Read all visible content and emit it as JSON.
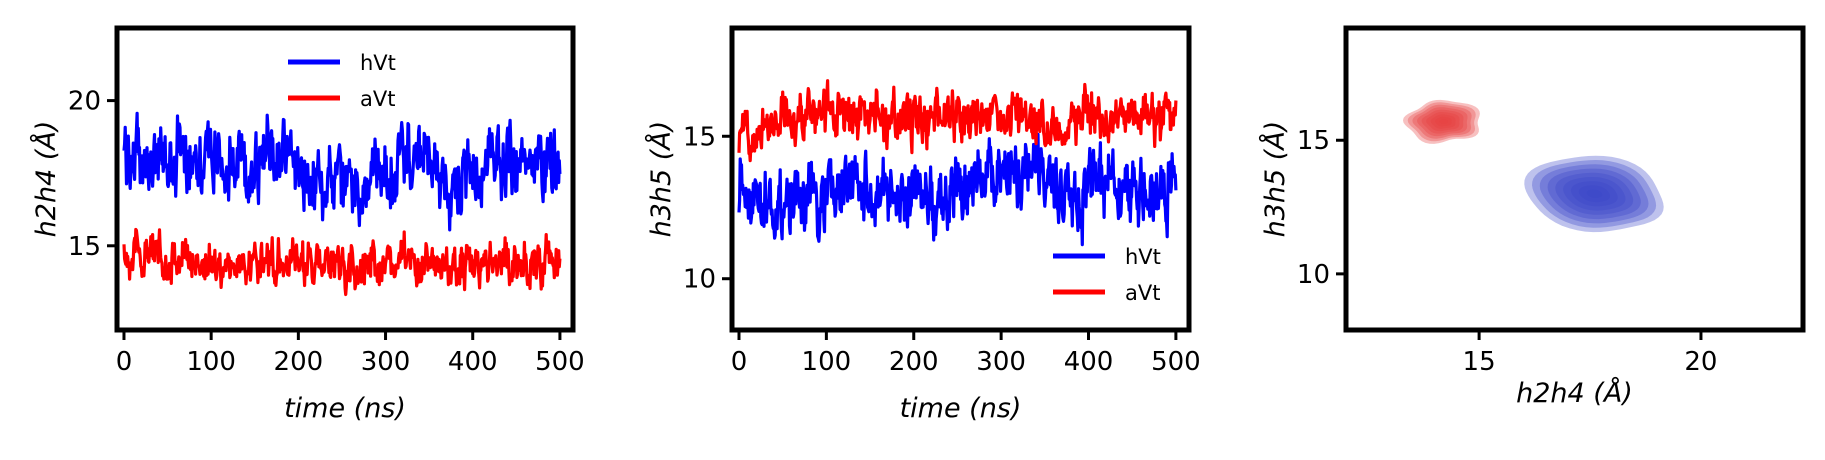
{
  "chart_data": [
    {
      "type": "line",
      "xlabel": "time (ns)",
      "ylabel": "h2h4 (Å)",
      "xlim": [
        -8,
        515
      ],
      "ylim": [
        12.1,
        22.5
      ],
      "xticks": [
        0,
        100,
        200,
        300,
        400,
        500
      ],
      "yticks": [
        15,
        20
      ],
      "legend": "top-center",
      "series": [
        {
          "name": "hVt",
          "color": "#0000ff",
          "mean": 18.0,
          "noise": 1.0,
          "x": [
            0,
            25,
            50,
            75,
            100,
            125,
            150,
            175,
            200,
            225,
            250,
            275,
            300,
            325,
            350,
            375,
            400,
            425,
            450,
            475,
            500
          ],
          "y": [
            18.2,
            18.0,
            17.9,
            18.3,
            18.1,
            17.6,
            17.8,
            18.4,
            17.7,
            17.2,
            17.0,
            17.1,
            17.4,
            18.2,
            17.9,
            16.8,
            17.3,
            18.0,
            17.6,
            17.9,
            18.0
          ]
        },
        {
          "name": "aVt",
          "color": "#ff0000",
          "mean": 14.5,
          "noise": 0.6,
          "x": [
            0,
            25,
            50,
            75,
            100,
            125,
            150,
            175,
            200,
            225,
            250,
            275,
            300,
            325,
            350,
            375,
            400,
            425,
            450,
            475,
            500
          ],
          "y": [
            14.8,
            14.7,
            14.6,
            14.5,
            14.4,
            14.3,
            14.4,
            14.6,
            14.5,
            14.3,
            14.2,
            14.3,
            14.4,
            14.5,
            14.3,
            14.2,
            14.4,
            14.5,
            14.3,
            14.4,
            14.5
          ]
        }
      ]
    },
    {
      "type": "line",
      "xlabel": "time (ns)",
      "ylabel": "h3h5 (Å)",
      "xlim": [
        -8,
        515
      ],
      "ylim": [
        8.2,
        18.8
      ],
      "xticks": [
        0,
        100,
        200,
        300,
        400,
        500
      ],
      "yticks": [
        10,
        15
      ],
      "legend": "lower-right",
      "series": [
        {
          "name": "hVt",
          "color": "#0000ff",
          "mean": 13.0,
          "noise": 1.0,
          "x": [
            0,
            25,
            50,
            75,
            100,
            125,
            150,
            175,
            200,
            225,
            250,
            275,
            300,
            325,
            350,
            375,
            400,
            425,
            450,
            475,
            500
          ],
          "y": [
            13.5,
            12.8,
            12.6,
            12.7,
            12.9,
            13.2,
            13.0,
            12.6,
            12.9,
            12.7,
            13.3,
            13.4,
            13.6,
            14.0,
            13.1,
            13.0,
            13.2,
            13.5,
            12.9,
            13.1,
            13.0
          ]
        },
        {
          "name": "aVt",
          "color": "#ff0000",
          "mean": 15.6,
          "noise": 0.7,
          "x": [
            0,
            25,
            50,
            75,
            100,
            125,
            150,
            175,
            200,
            225,
            250,
            275,
            300,
            325,
            350,
            375,
            400,
            425,
            450,
            475,
            500
          ],
          "y": [
            15.0,
            15.6,
            15.7,
            15.8,
            15.9,
            15.7,
            15.6,
            15.5,
            15.6,
            15.7,
            15.5,
            15.6,
            15.8,
            15.7,
            15.5,
            15.6,
            15.7,
            15.5,
            15.6,
            15.6,
            15.5
          ]
        }
      ]
    },
    {
      "type": "contour",
      "xlabel": "h2h4 (Å)",
      "ylabel": "h3h5 (Å)",
      "xlim": [
        12.0,
        22.3
      ],
      "ylim": [
        7.9,
        19.2
      ],
      "xticks": [
        15,
        20
      ],
      "yticks": [
        10,
        15
      ],
      "densities": [
        {
          "name": "hVt",
          "color": "#3a46c8",
          "center": [
            17.6,
            13.0
          ],
          "spread": [
            1.7,
            1.8
          ],
          "levels": 9
        },
        {
          "name": "aVt",
          "color": "#e8403f",
          "center": [
            14.2,
            15.7
          ],
          "spread": [
            0.85,
            1.1
          ],
          "levels": 9
        }
      ]
    }
  ]
}
